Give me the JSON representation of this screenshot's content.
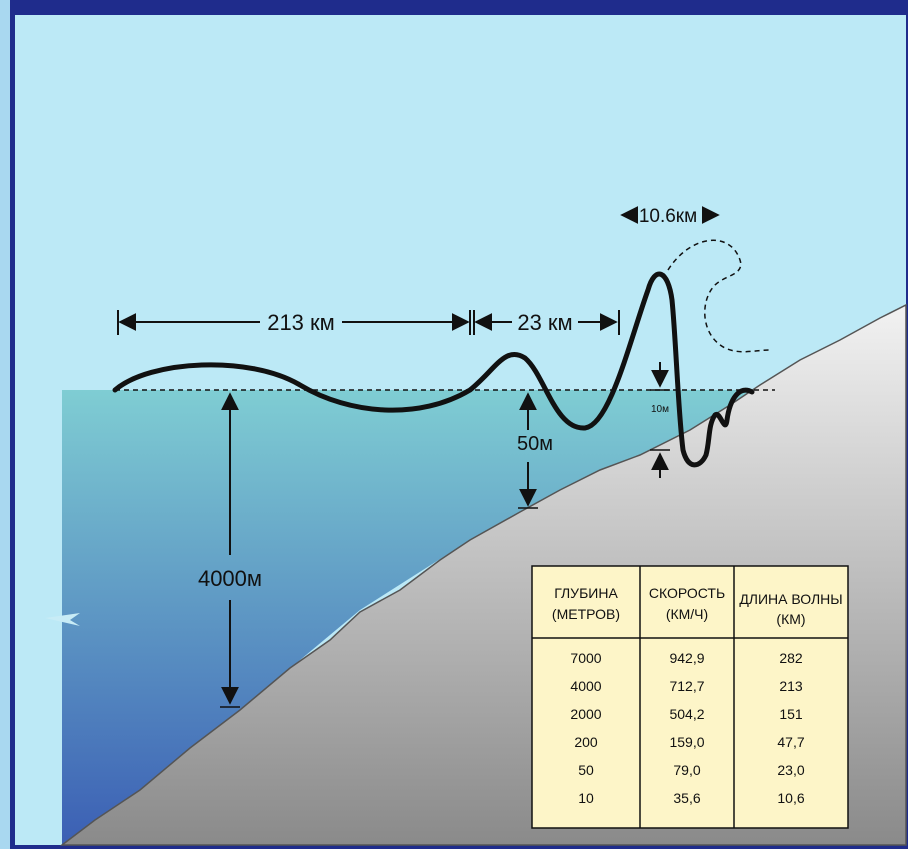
{
  "colors": {
    "background_border": "#1f2c8c",
    "sky": "#bce9f6",
    "water_top": "#7fcdd3",
    "water_bottom": "#3b5fb4",
    "seabed_light": "#f2f2f2",
    "seabed_dark": "#8a8a8a",
    "table_fill": "#fdf5c8",
    "wave_line": "#111111"
  },
  "labels": {
    "dist_213": "213 км",
    "dist_23": "23 км",
    "dist_10_6": "10.6км",
    "height_10": "10м",
    "depth_50": "50м",
    "depth_4000": "4000м"
  },
  "table": {
    "headers": [
      [
        "ГЛУБИНА",
        "(МЕТРОВ)"
      ],
      [
        "СКОРОСТЬ",
        "(КМ/Ч)"
      ],
      [
        "ДЛИНА ВОЛНЫ",
        "(КМ)"
      ]
    ],
    "rows": [
      [
        "7000",
        "942,9",
        "282"
      ],
      [
        "4000",
        "712,7",
        "213"
      ],
      [
        "2000",
        "504,2",
        "151"
      ],
      [
        "200",
        "159,0",
        "47,7"
      ],
      [
        "50",
        "79,0",
        "23,0"
      ],
      [
        "10",
        "35,6",
        "10,6"
      ]
    ]
  }
}
